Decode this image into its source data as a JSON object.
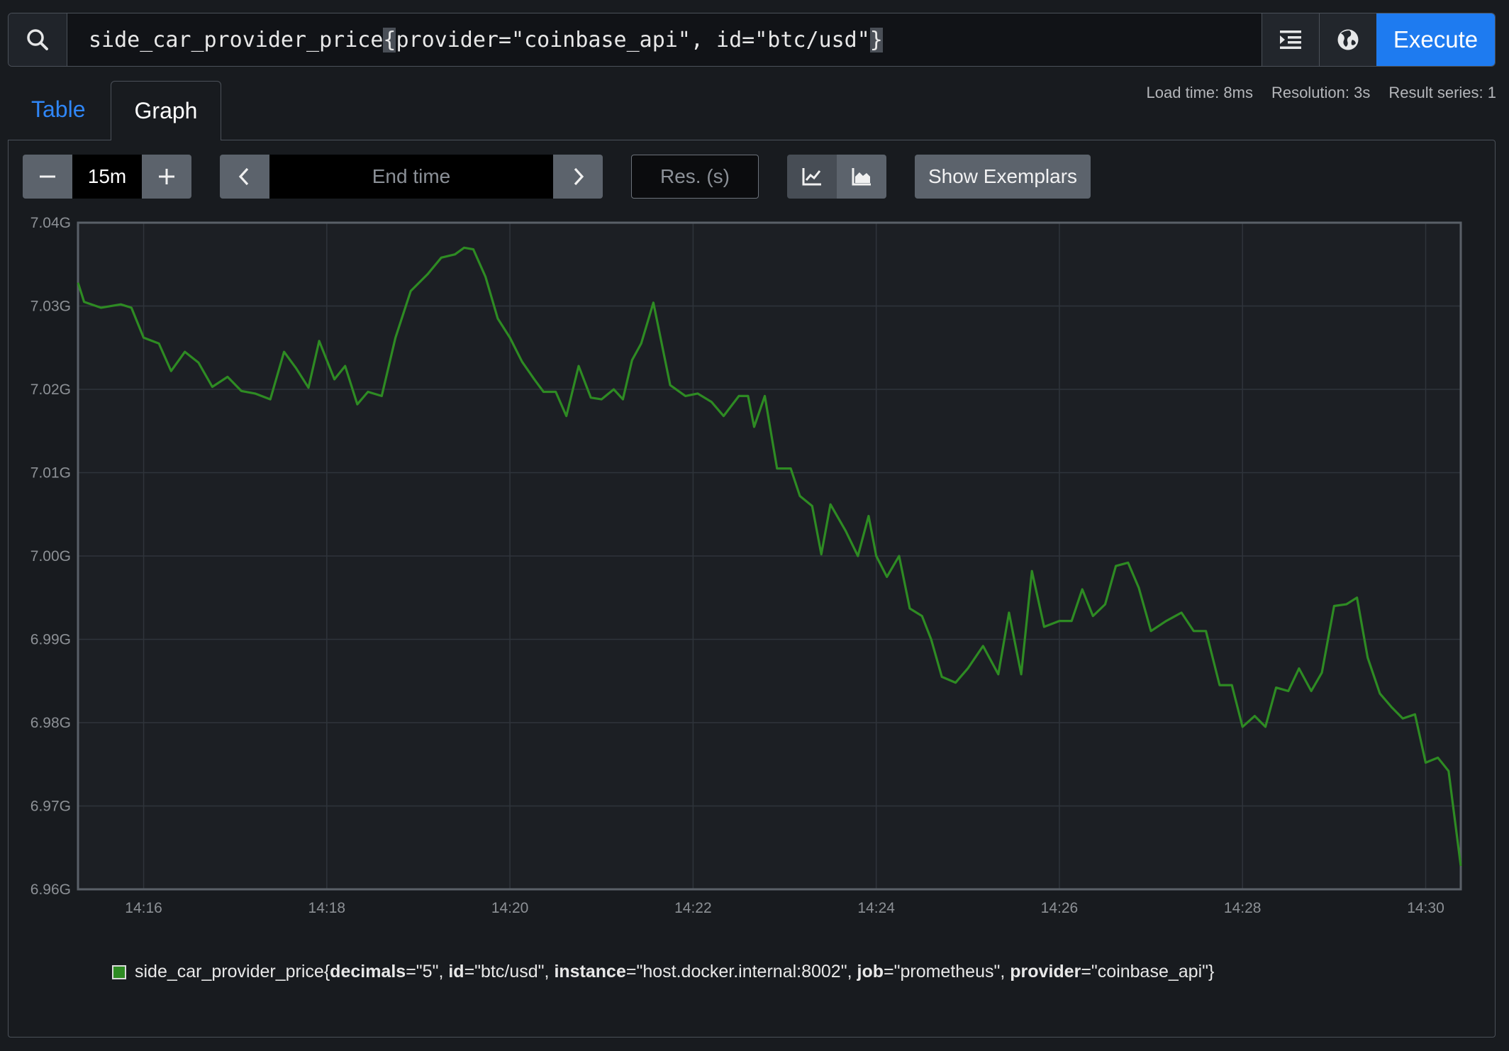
{
  "query": {
    "metric": "side_car_provider_price",
    "open_brace": "{",
    "labels": "provider=\"coinbase_api\", id=\"btc/usd\"",
    "close_brace": "}",
    "execute_label": "Execute"
  },
  "stats": {
    "load_time": "Load time: 8ms",
    "resolution": "Resolution: 3s",
    "result_series": "Result series: 1"
  },
  "tabs": {
    "table": "Table",
    "graph": "Graph"
  },
  "controls": {
    "range_value": "15m",
    "end_time_placeholder": "End time",
    "resolution_placeholder": "Res. (s)",
    "show_exemplars": "Show Exemplars"
  },
  "colors": {
    "series": "#2e8b23",
    "accent": "#1e7bf0"
  },
  "legend": {
    "metric": "side_car_provider_price",
    "open": "{",
    "close": "}",
    "labels": [
      {
        "key": "decimals",
        "value": "=\"5\"",
        "sep": ", "
      },
      {
        "key": "id",
        "value": "=\"btc/usd\"",
        "sep": ", "
      },
      {
        "key": "instance",
        "value": "=\"host.docker.internal:8002\"",
        "sep": ", "
      },
      {
        "key": "job",
        "value": "=\"prometheus\"",
        "sep": ", "
      },
      {
        "key": "provider",
        "value": "=\"coinbase_api\"",
        "sep": ""
      }
    ]
  },
  "chart_data": {
    "type": "line",
    "ylim": [
      6.96,
      7.04
    ],
    "xlim": [
      "14:15:17",
      "14:30:23"
    ],
    "y_ticks": [
      "7.04G",
      "7.03G",
      "7.02G",
      "7.01G",
      "7.00G",
      "6.99G",
      "6.98G",
      "6.97G",
      "6.96G"
    ],
    "x_ticks": [
      "14:16",
      "14:18",
      "14:20",
      "14:22",
      "14:24",
      "14:26",
      "14:28",
      "14:30"
    ],
    "grid": true,
    "series": [
      {
        "color": "#2e8b23",
        "x": [
          "14:15:17",
          "14:15:21",
          "14:15:32",
          "14:15:45",
          "14:15:52",
          "14:16:00",
          "14:16:10",
          "14:16:18",
          "14:16:27",
          "14:16:36",
          "14:16:45",
          "14:16:55",
          "14:17:04",
          "14:17:13",
          "14:17:23",
          "14:17:32",
          "14:17:40",
          "14:17:48",
          "14:17:55",
          "14:18:05",
          "14:18:12",
          "14:18:20",
          "14:18:27",
          "14:18:36",
          "14:18:45",
          "14:18:55",
          "14:19:06",
          "14:19:15",
          "14:19:24",
          "14:19:30",
          "14:19:36",
          "14:19:44",
          "14:19:52",
          "14:20:00",
          "14:20:08",
          "14:20:16",
          "14:20:22",
          "14:20:30",
          "14:20:37",
          "14:20:45",
          "14:20:53",
          "14:21:00",
          "14:21:08",
          "14:21:14",
          "14:21:20",
          "14:21:26",
          "14:21:34",
          "14:21:45",
          "14:21:55",
          "14:22:03",
          "14:22:12",
          "14:22:20",
          "14:22:30",
          "14:22:36",
          "14:22:40",
          "14:22:47",
          "14:22:55",
          "14:23:04",
          "14:23:10",
          "14:23:18",
          "14:23:24",
          "14:23:30",
          "14:23:40",
          "14:23:48",
          "14:23:55",
          "14:24:00",
          "14:24:07",
          "14:24:15",
          "14:24:22",
          "14:24:30",
          "14:24:36",
          "14:24:43",
          "14:24:52",
          "14:25:00",
          "14:25:10",
          "14:25:20",
          "14:25:27",
          "14:25:35",
          "14:25:42",
          "14:25:50",
          "14:26:00",
          "14:26:08",
          "14:26:15",
          "14:26:22",
          "14:26:30",
          "14:26:37",
          "14:26:45",
          "14:26:52",
          "14:27:00",
          "14:27:10",
          "14:27:20",
          "14:27:28",
          "14:27:36",
          "14:27:45",
          "14:27:53",
          "14:28:00",
          "14:28:08",
          "14:28:15",
          "14:28:22",
          "14:28:30",
          "14:28:37",
          "14:28:45",
          "14:28:52",
          "14:29:00",
          "14:29:08",
          "14:29:15",
          "14:29:22",
          "14:29:30",
          "14:29:38",
          "14:29:45",
          "14:29:53",
          "14:30:00",
          "14:30:08",
          "14:30:15",
          "14:30:23"
        ],
        "values": [
          7.0328,
          7.0305,
          7.0298,
          7.0302,
          7.0298,
          7.0262,
          7.0255,
          7.0222,
          7.0245,
          7.0232,
          7.0203,
          7.0215,
          7.0198,
          7.0195,
          7.0188,
          7.0245,
          7.0225,
          7.0202,
          7.0258,
          7.0212,
          7.0228,
          7.0182,
          7.0197,
          7.0192,
          7.0262,
          7.0318,
          7.0338,
          7.0358,
          7.0362,
          7.037,
          7.0368,
          7.0335,
          7.0285,
          7.0262,
          7.0233,
          7.0212,
          7.0197,
          7.0197,
          7.0168,
          7.0228,
          7.019,
          7.0188,
          7.02,
          7.0188,
          7.0235,
          7.0255,
          7.0304,
          7.0205,
          7.0192,
          7.0195,
          7.0185,
          7.0168,
          7.0192,
          7.0192,
          7.0155,
          7.0192,
          7.0105,
          7.0105,
          7.0072,
          7.006,
          7.0002,
          7.0062,
          7.003,
          7.0,
          7.0048,
          7.0,
          6.9975,
          7.0,
          6.9937,
          6.9928,
          6.99,
          6.9855,
          6.9848,
          6.9865,
          6.9892,
          6.9858,
          6.9932,
          6.9858,
          6.9982,
          6.9915,
          6.9922,
          6.9922,
          6.996,
          6.9928,
          6.9942,
          6.9988,
          6.9992,
          6.9962,
          6.991,
          6.9922,
          6.9932,
          6.991,
          6.991,
          6.9845,
          6.9845,
          6.9795,
          6.9808,
          6.9795,
          6.9842,
          6.9838,
          6.9865,
          6.9838,
          6.986,
          6.994,
          6.9942,
          6.995,
          6.9878,
          6.9835,
          6.9818,
          6.9805,
          6.981,
          6.9752,
          6.9758,
          6.9742,
          6.9628
        ]
      }
    ]
  }
}
